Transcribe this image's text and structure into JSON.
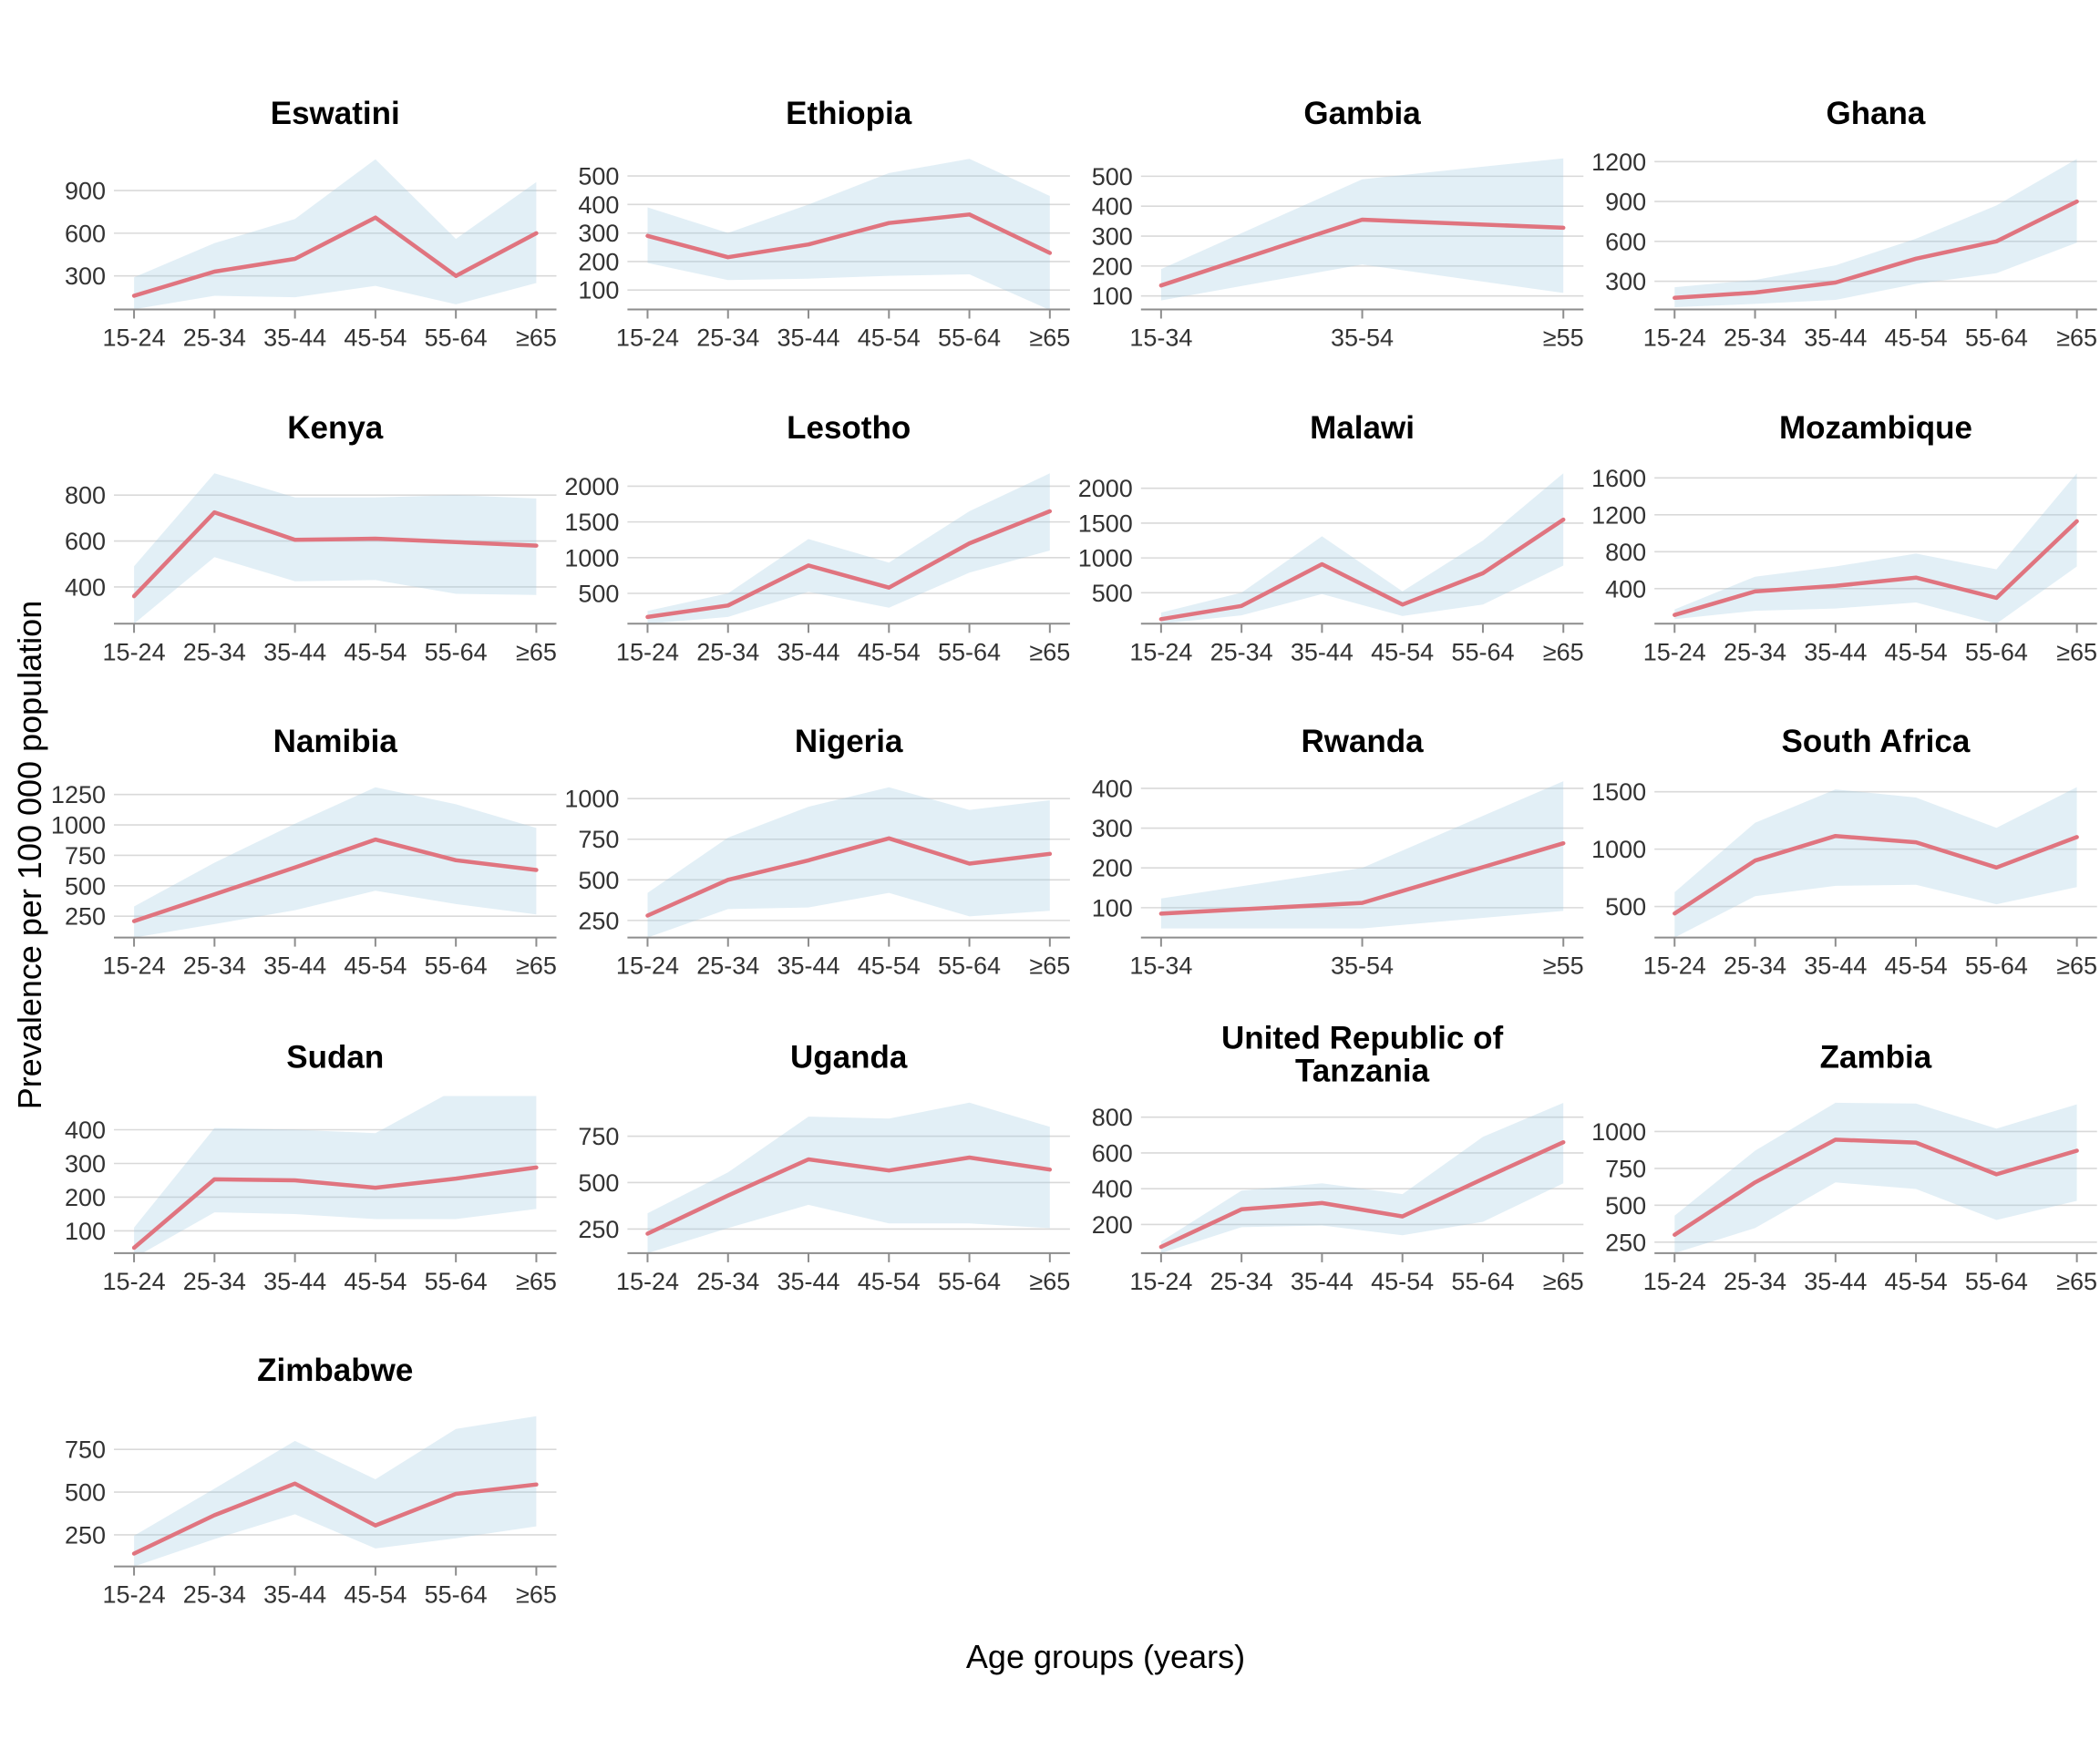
{
  "figure": {
    "ylabel": "Prevalence per 100 000 population",
    "xlabel": "Age groups (years)",
    "colors": {
      "line": "#e0747f",
      "ribbon": "#9ecae1",
      "ribbon_opacity": 0.3,
      "grid": "#d9d9d9",
      "axis": "#8d8d8d",
      "tick_text": "#333333",
      "title_text": "#000000"
    }
  },
  "chart_data": [
    {
      "type": "line",
      "title": "Eswatini",
      "title_lines": [
        "Eswatini"
      ],
      "categories": [
        "15-24",
        "25-34",
        "35-44",
        "45-54",
        "55-64",
        "≥65"
      ],
      "values": [
        160,
        330,
        420,
        710,
        300,
        600
      ],
      "ci_low": [
        65,
        160,
        150,
        230,
        100,
        250
      ],
      "ci_high": [
        290,
        530,
        700,
        1120,
        560,
        960
      ],
      "yticks": [
        300,
        600,
        900
      ],
      "ylim": [
        64,
        1169
      ]
    },
    {
      "type": "line",
      "title": "Ethiopia",
      "title_lines": [
        "Ethiopia"
      ],
      "categories": [
        "15-24",
        "25-34",
        "35-44",
        "45-54",
        "55-64",
        "≥65"
      ],
      "values": [
        290,
        215,
        260,
        335,
        365,
        230
      ],
      "ci_low": [
        195,
        135,
        140,
        150,
        155,
        30
      ],
      "ci_high": [
        390,
        300,
        400,
        510,
        560,
        430
      ],
      "yticks": [
        100,
        200,
        300,
        400,
        500
      ],
      "ylim": [
        32,
        583
      ]
    },
    {
      "type": "line",
      "title": "Gambia",
      "title_lines": [
        "Gambia"
      ],
      "categories": [
        "15-34",
        "35-54",
        "≥55"
      ],
      "values": [
        135,
        355,
        328
      ],
      "ci_low": [
        85,
        205,
        110
      ],
      "ci_high": [
        190,
        490,
        560
      ],
      "yticks": [
        100,
        200,
        300,
        400,
        500
      ],
      "ylim": [
        55,
        580
      ]
    },
    {
      "type": "line",
      "title": "Ghana",
      "title_lines": [
        "Ghana"
      ],
      "categories": [
        "15-24",
        "25-34",
        "35-44",
        "45-54",
        "55-64",
        "≥65"
      ],
      "values": [
        175,
        215,
        290,
        470,
        600,
        900
      ],
      "ci_low": [
        105,
        130,
        160,
        280,
        360,
        590
      ],
      "ci_high": [
        255,
        310,
        420,
        620,
        870,
        1220
      ],
      "yticks": [
        300,
        600,
        900,
        1200
      ],
      "ylim": [
        88,
        1270
      ]
    },
    {
      "type": "line",
      "title": "Kenya",
      "title_lines": [
        "Kenya"
      ],
      "categories": [
        "15-24",
        "25-34",
        "35-44",
        "45-54",
        "55-64",
        "≥65"
      ],
      "values": [
        360,
        725,
        605,
        610,
        595,
        580
      ],
      "ci_low": [
        240,
        530,
        425,
        430,
        370,
        365
      ],
      "ci_high": [
        490,
        895,
        790,
        790,
        800,
        785
      ],
      "yticks": [
        400,
        600,
        800
      ],
      "ylim": [
        240,
        924
      ]
    },
    {
      "type": "line",
      "title": "Lesotho",
      "title_lines": [
        "Lesotho"
      ],
      "categories": [
        "15-24",
        "25-34",
        "35-44",
        "45-54",
        "55-64",
        "≥65"
      ],
      "values": [
        170,
        330,
        890,
        580,
        1200,
        1650
      ],
      "ci_low": [
        75,
        170,
        520,
        300,
        790,
        1100
      ],
      "ci_high": [
        255,
        500,
        1260,
        930,
        1650,
        2180
      ],
      "yticks": [
        500,
        1000,
        1500,
        2000
      ],
      "ylim": [
        75,
        2275
      ]
    },
    {
      "type": "line",
      "title": "Malawi",
      "title_lines": [
        "Malawi"
      ],
      "categories": [
        "15-24",
        "25-34",
        "35-44",
        "45-54",
        "55-64",
        "≥65"
      ],
      "values": [
        120,
        310,
        910,
        330,
        780,
        1550
      ],
      "ci_low": [
        55,
        175,
        480,
        165,
        330,
        890
      ],
      "ci_high": [
        215,
        500,
        1310,
        520,
        1250,
        2215
      ],
      "yticks": [
        500,
        1000,
        1500,
        2000
      ],
      "ylim": [
        55,
        2312
      ]
    },
    {
      "type": "line",
      "title": "Mozambique",
      "title_lines": [
        "Mozambique"
      ],
      "categories": [
        "15-24",
        "25-34",
        "35-44",
        "45-54",
        "55-64",
        "≥65"
      ],
      "values": [
        115,
        370,
        430,
        520,
        300,
        1130
      ],
      "ci_low": [
        70,
        160,
        185,
        250,
        20,
        640
      ],
      "ci_high": [
        175,
        530,
        640,
        780,
        610,
        1650
      ],
      "yticks": [
        400,
        800,
        1200,
        1600
      ],
      "ylim": [
        20,
        1723
      ]
    },
    {
      "type": "line",
      "title": "Namibia",
      "title_lines": [
        "Namibia"
      ],
      "categories": [
        "15-24",
        "25-34",
        "35-44",
        "45-54",
        "55-64",
        "≥65"
      ],
      "values": [
        210,
        430,
        650,
        880,
        710,
        630
      ],
      "ci_low": [
        75,
        185,
        300,
        460,
        350,
        265
      ],
      "ci_high": [
        330,
        690,
        1010,
        1310,
        1170,
        975
      ],
      "yticks": [
        250,
        500,
        750,
        1000,
        1250
      ],
      "ylim": [
        75,
        1366
      ]
    },
    {
      "type": "line",
      "title": "Nigeria",
      "title_lines": [
        "Nigeria"
      ],
      "categories": [
        "15-24",
        "25-34",
        "35-44",
        "45-54",
        "55-64",
        "≥65"
      ],
      "values": [
        280,
        500,
        620,
        755,
        600,
        660
      ],
      "ci_low": [
        145,
        320,
        330,
        420,
        275,
        310
      ],
      "ci_high": [
        420,
        760,
        950,
        1070,
        930,
        990
      ],
      "yticks": [
        250,
        500,
        750,
        1000
      ],
      "ylim": [
        145,
        1112
      ]
    },
    {
      "type": "line",
      "title": "Rwanda",
      "title_lines": [
        "Rwanda"
      ],
      "categories": [
        "15-34",
        "35-54",
        "≥55"
      ],
      "values": [
        85,
        112,
        262
      ],
      "ci_low": [
        48,
        48,
        92
      ],
      "ci_high": [
        123,
        200,
        418
      ],
      "yticks": [
        100,
        200,
        300,
        400
      ],
      "ylim": [
        25,
        420
      ]
    },
    {
      "type": "line",
      "title": "South Africa",
      "title_lines": [
        "South Africa"
      ],
      "categories": [
        "15-24",
        "25-34",
        "35-44",
        "45-54",
        "55-64",
        "≥65"
      ],
      "values": [
        440,
        900,
        1115,
        1060,
        840,
        1105
      ],
      "ci_low": [
        230,
        590,
        680,
        690,
        520,
        670
      ],
      "ci_high": [
        625,
        1230,
        1520,
        1450,
        1185,
        1540
      ],
      "yticks": [
        500,
        1000,
        1500
      ],
      "ylim": [
        230,
        1599
      ]
    },
    {
      "type": "line",
      "title": "Sudan",
      "title_lines": [
        "Sudan"
      ],
      "categories": [
        "15-24",
        "25-34",
        "35-44",
        "45-54",
        "55-64",
        "≥65"
      ],
      "values": [
        50,
        253,
        250,
        228,
        255,
        288
      ],
      "ci_low": [
        20,
        155,
        150,
        135,
        135,
        165
      ],
      "ci_high": [
        110,
        405,
        400,
        390,
        520,
        555
      ],
      "yticks": [
        100,
        200,
        300,
        400
      ],
      "ylim": [
        34,
        500
      ]
    },
    {
      "type": "line",
      "title": "Uganda",
      "title_lines": [
        "Uganda"
      ],
      "categories": [
        "15-24",
        "25-34",
        "35-44",
        "45-54",
        "55-64",
        "≥65"
      ],
      "values": [
        225,
        430,
        625,
        565,
        635,
        570
      ],
      "ci_low": [
        120,
        255,
        380,
        280,
        280,
        255
      ],
      "ci_high": [
        335,
        555,
        855,
        845,
        930,
        800
      ],
      "yticks": [
        250,
        500,
        750
      ],
      "ylim": [
        120,
        966
      ]
    },
    {
      "type": "line",
      "title": "United Republic of Tanzania",
      "title_lines": [
        "United Republic of",
        "Tanzania"
      ],
      "categories": [
        "15-24",
        "25-34",
        "35-44",
        "45-54",
        "55-64",
        "≥65"
      ],
      "values": [
        75,
        285,
        320,
        245,
        455,
        660
      ],
      "ci_low": [
        40,
        185,
        195,
        140,
        215,
        430
      ],
      "ci_high": [
        105,
        390,
        430,
        370,
        690,
        880
      ],
      "yticks": [
        200,
        400,
        600,
        800
      ],
      "ylim": [
        40,
        918
      ]
    },
    {
      "type": "line",
      "title": "Zambia",
      "title_lines": [
        "Zambia"
      ],
      "categories": [
        "15-24",
        "25-34",
        "35-44",
        "45-54",
        "55-64",
        "≥65"
      ],
      "values": [
        300,
        655,
        945,
        925,
        710,
        870
      ],
      "ci_low": [
        175,
        345,
        655,
        610,
        400,
        530
      ],
      "ci_high": [
        430,
        870,
        1195,
        1190,
        1020,
        1185
      ],
      "yticks": [
        250,
        500,
        750,
        1000
      ],
      "ylim": [
        175,
        1241
      ]
    },
    {
      "type": "line",
      "title": "Zimbabwe",
      "title_lines": [
        "Zimbabwe"
      ],
      "categories": [
        "15-24",
        "25-34",
        "35-44",
        "45-54",
        "55-64",
        "≥65"
      ],
      "values": [
        140,
        365,
        550,
        305,
        490,
        545
      ],
      "ci_low": [
        65,
        225,
        370,
        170,
        230,
        300
      ],
      "ci_high": [
        245,
        520,
        800,
        575,
        870,
        945
      ],
      "yticks": [
        250,
        500,
        750
      ],
      "ylim": [
        65,
        985
      ]
    }
  ]
}
